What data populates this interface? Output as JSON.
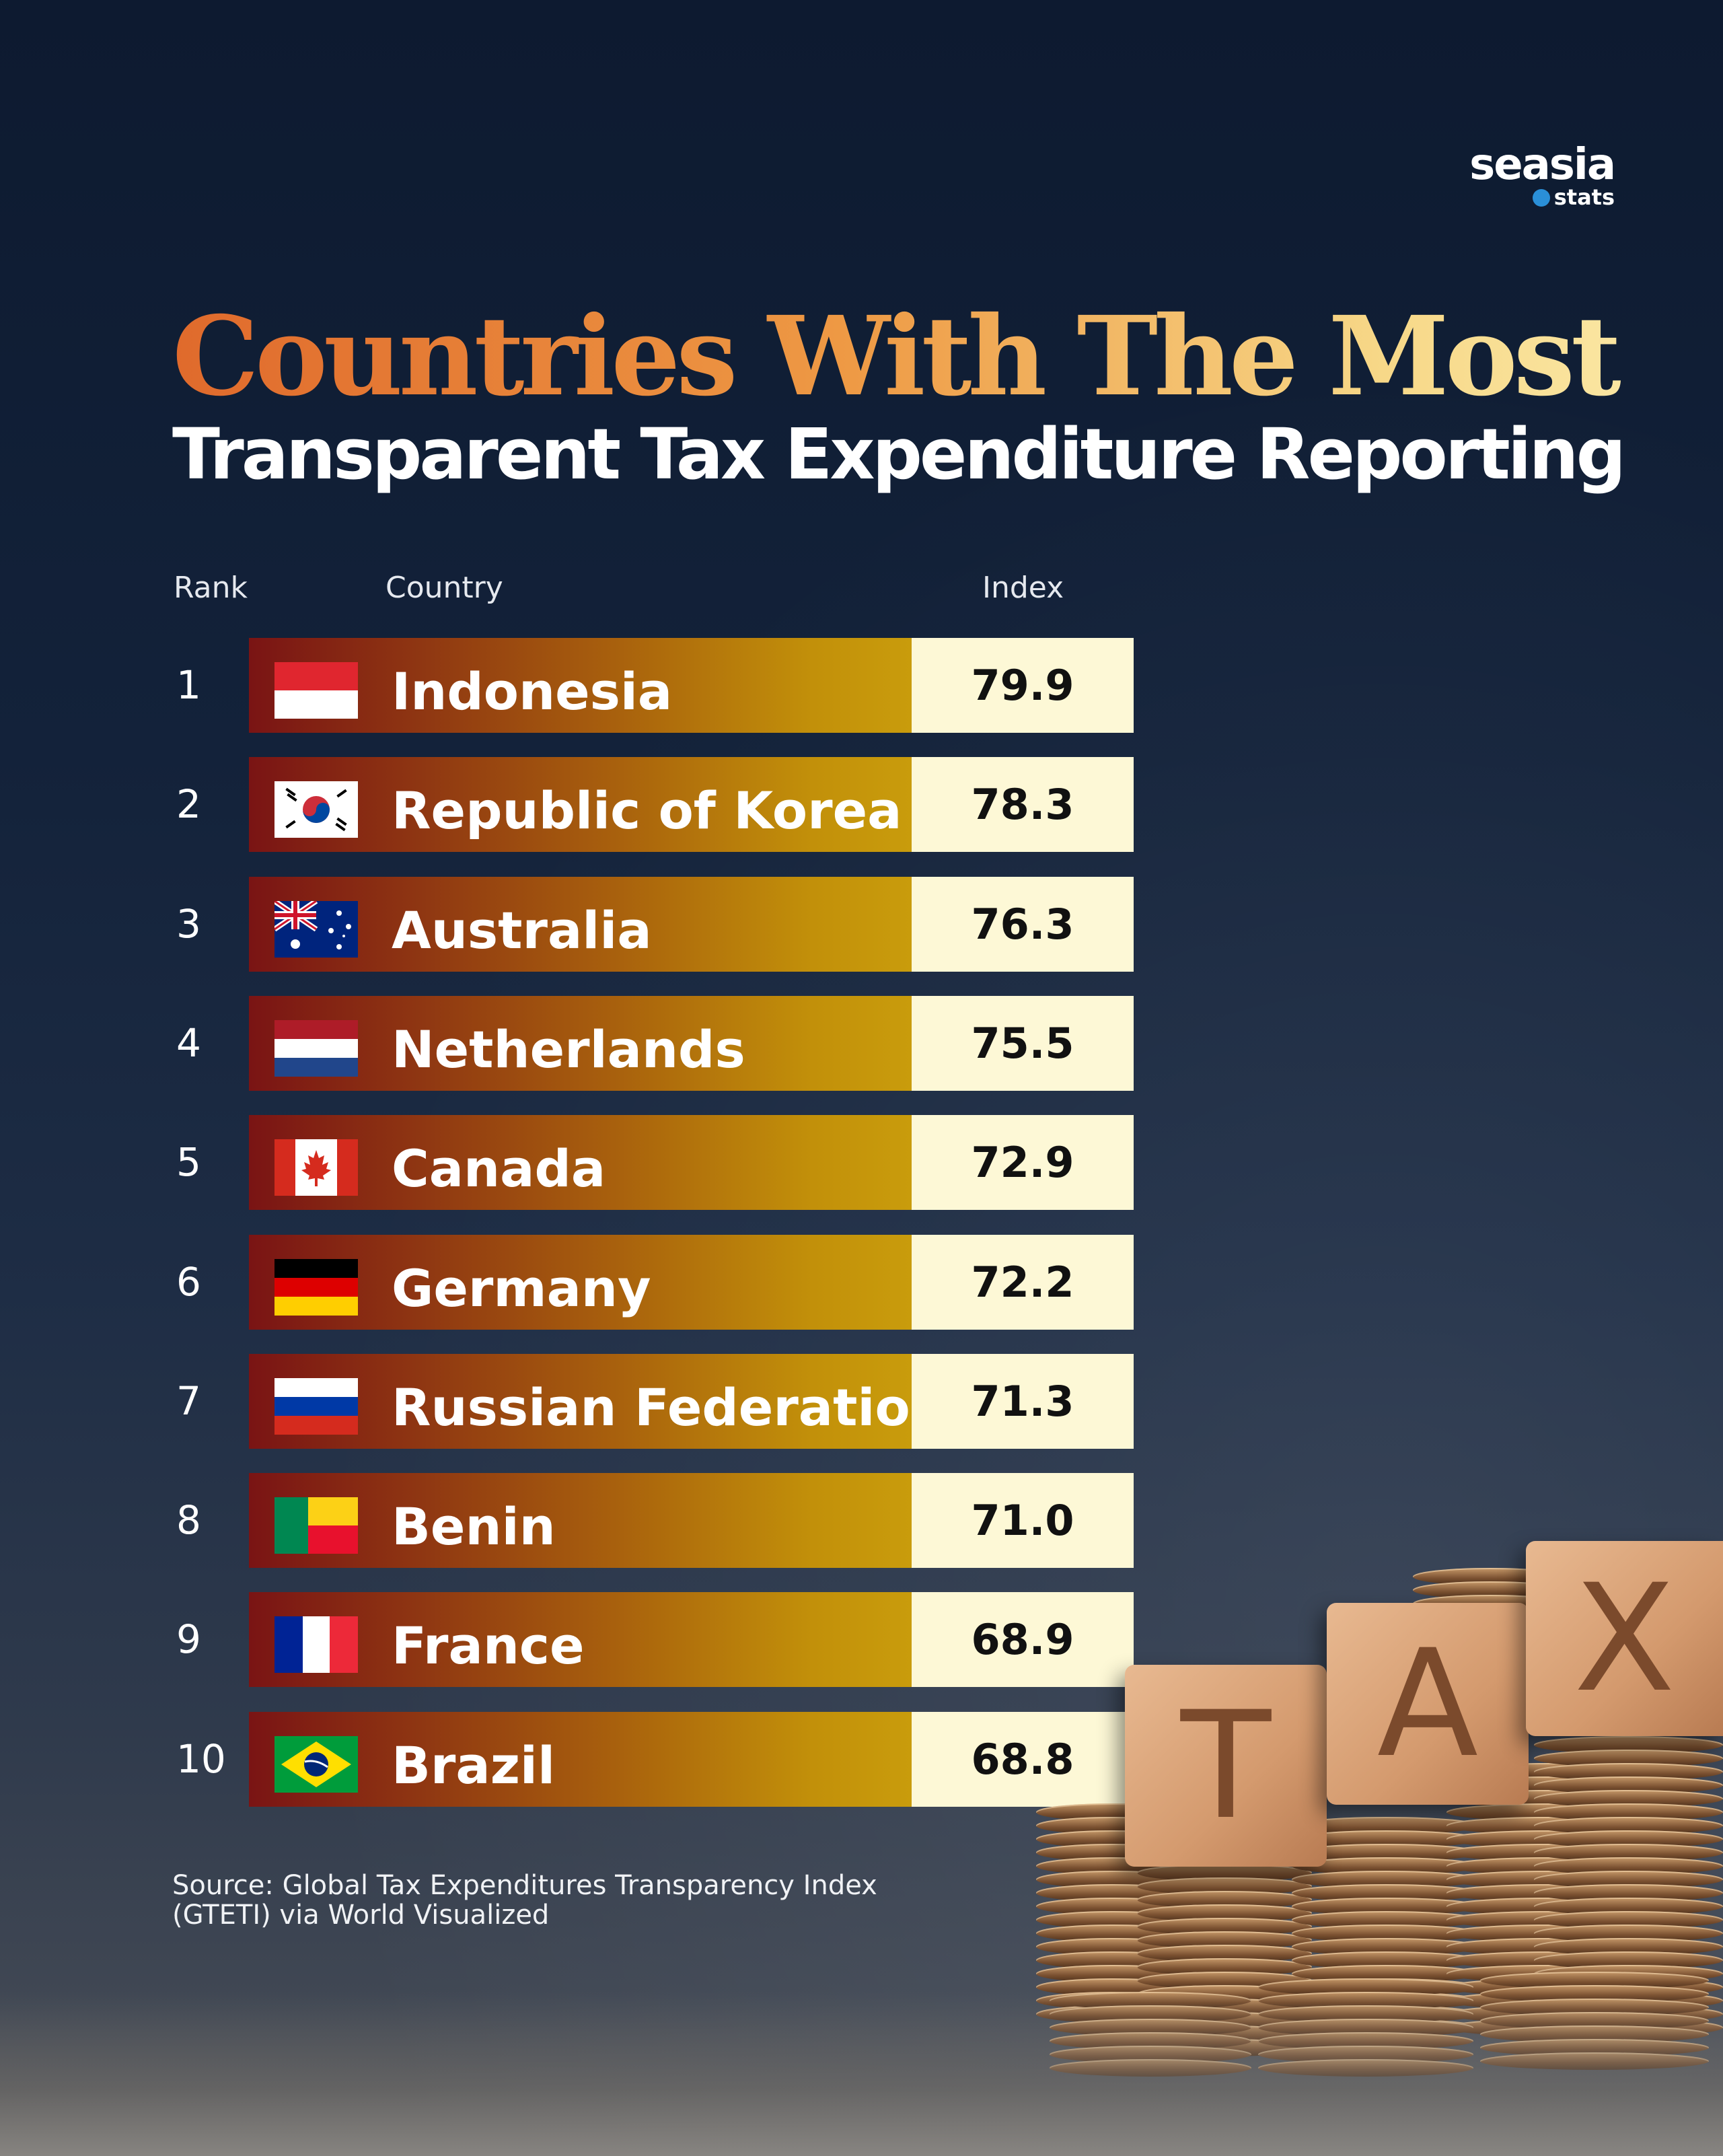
{
  "brand": {
    "name": "seasia",
    "sub": "stats"
  },
  "title_line1": "Countries With The Most",
  "title_line2": "Transparent Tax Expenditure Reporting",
  "headers": {
    "rank": "Rank",
    "country": "Country",
    "index": "Index"
  },
  "source": "Source: Global Tax Expenditures Transparency Index (GTETI) via World Visualized",
  "block_letters": [
    "T",
    "A",
    "X"
  ],
  "chart_data": {
    "type": "table",
    "columns": [
      "Rank",
      "Country",
      "Index"
    ],
    "rows": [
      {
        "rank": "1",
        "country": "Indonesia",
        "flag": "indonesia-flag-icon",
        "index": "79.9"
      },
      {
        "rank": "2",
        "country": "Republic of Korea",
        "flag": "korea-flag-icon",
        "index": "78.3"
      },
      {
        "rank": "3",
        "country": "Australia",
        "flag": "australia-flag-icon",
        "index": "76.3"
      },
      {
        "rank": "4",
        "country": "Netherlands",
        "flag": "netherlands-flag-icon",
        "index": "75.5"
      },
      {
        "rank": "5",
        "country": "Canada",
        "flag": "canada-flag-icon",
        "index": "72.9"
      },
      {
        "rank": "6",
        "country": "Germany",
        "flag": "germany-flag-icon",
        "index": "72.2"
      },
      {
        "rank": "7",
        "country": "Russian Federation",
        "flag": "russia-flag-icon",
        "index": "71.3"
      },
      {
        "rank": "8",
        "country": "Benin",
        "flag": "benin-flag-icon",
        "index": "71.0"
      },
      {
        "rank": "9",
        "country": "France",
        "flag": "france-flag-icon",
        "index": "68.9"
      },
      {
        "rank": "10",
        "country": "Brazil",
        "flag": "brazil-flag-icon",
        "index": "68.8"
      }
    ]
  },
  "colors": {
    "bar_start": "#7a1414",
    "bar_end": "#c99c0c",
    "value_bg": "#fdf8d6",
    "title_orange": "#e06a2c",
    "title_gold": "#fbe9a8"
  }
}
